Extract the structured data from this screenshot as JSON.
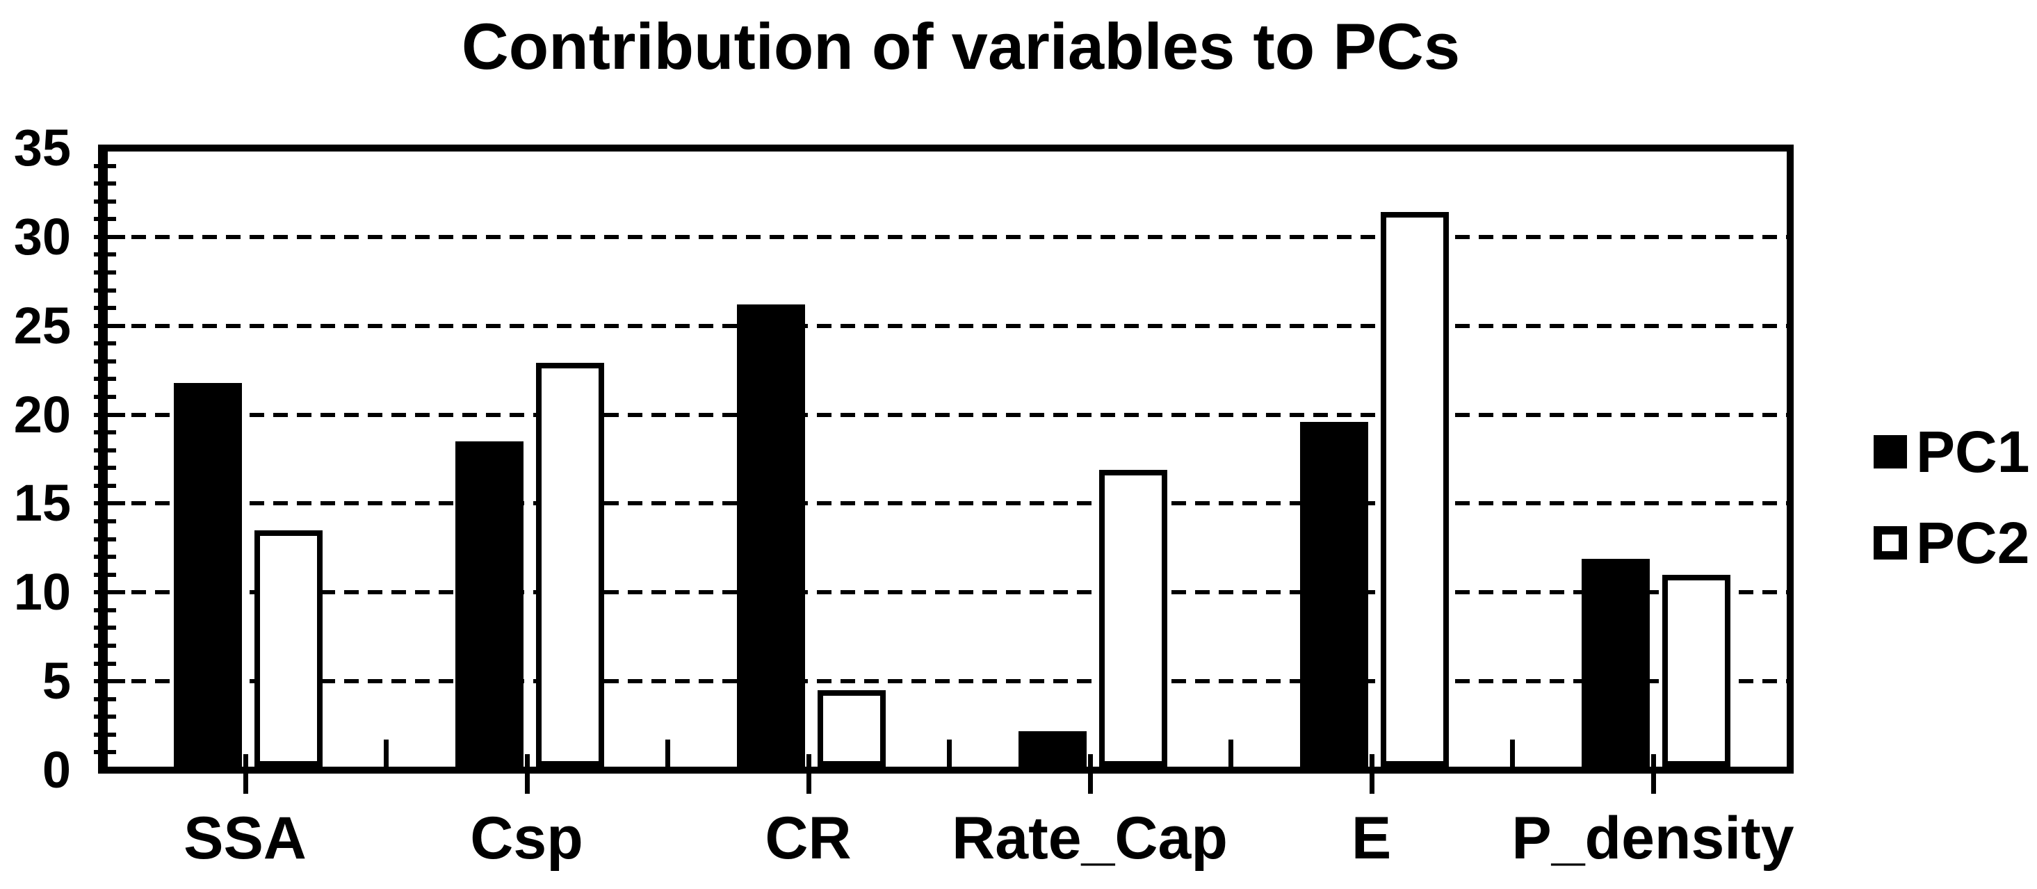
{
  "title": "Contribution of variables to PCs",
  "colors": {
    "foreground": "#000000",
    "background": "#ffffff"
  },
  "legend": {
    "items": [
      {
        "label": "PC1",
        "marker": "filled-black-square"
      },
      {
        "label": "PC2",
        "marker": "open-white-square"
      }
    ]
  },
  "chart_data": {
    "type": "bar",
    "title": "Contribution of variables to PCs",
    "categories": [
      "SSA",
      "Csp",
      "CR",
      "Rate_Cap",
      "E",
      "P_density"
    ],
    "series": [
      {
        "name": "PC1",
        "style": "filled",
        "color": "#000000",
        "values": [
          21.8,
          18.5,
          26.2,
          2.2,
          19.6,
          11.9
        ]
      },
      {
        "name": "PC2",
        "style": "open",
        "color": "#ffffff",
        "values": [
          13.5,
          22.9,
          4.5,
          16.9,
          31.4,
          11.0
        ]
      }
    ],
    "xlabel": "",
    "ylabel": "",
    "ylim": [
      0,
      35
    ],
    "yticks": [
      0,
      5,
      10,
      15,
      20,
      25,
      30,
      35
    ],
    "ytick_labels": [
      "0",
      "5",
      "10",
      "15",
      "20",
      "25",
      "30",
      "35"
    ],
    "minor_ytick_step": 1,
    "grid": "horizontal-dashed-every-5",
    "gridlines_at": [
      5,
      10,
      15,
      20,
      25,
      30
    ],
    "legend_position": "right"
  }
}
